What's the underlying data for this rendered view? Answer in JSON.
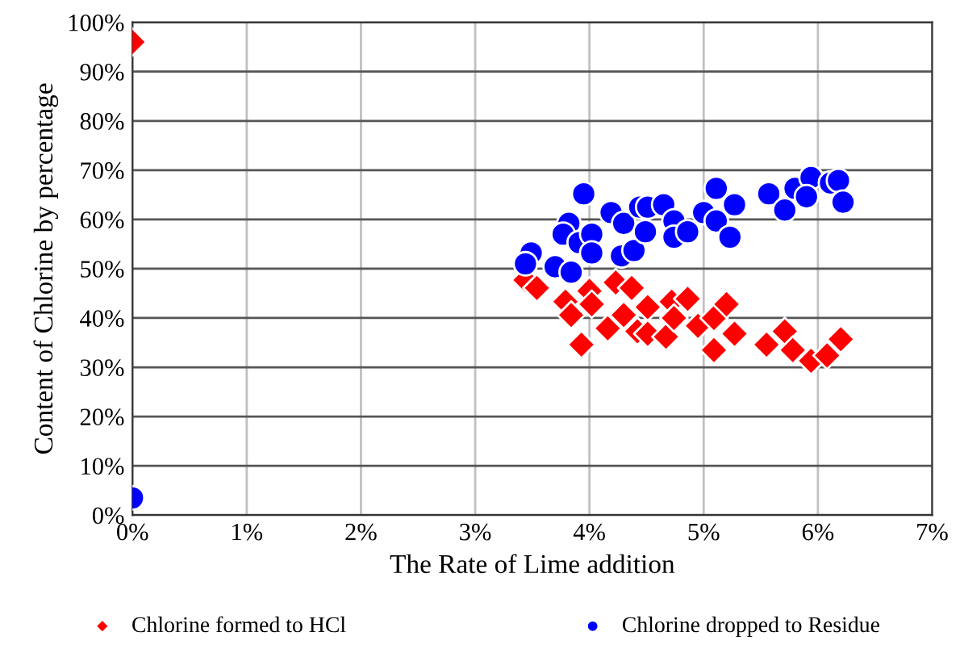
{
  "chart_data": {
    "type": "scatter",
    "xlabel": "The Rate of Lime addition",
    "ylabel": "Content of Chlorine by percentage",
    "xlim": [
      0,
      7
    ],
    "ylim": [
      0,
      100
    ],
    "xticks": [
      {
        "value": 0,
        "label": "0%"
      },
      {
        "value": 1,
        "label": "1%"
      },
      {
        "value": 2,
        "label": "2%"
      },
      {
        "value": 3,
        "label": "3%"
      },
      {
        "value": 4,
        "label": "4%"
      },
      {
        "value": 5,
        "label": "5%"
      },
      {
        "value": 6,
        "label": "6%"
      },
      {
        "value": 7,
        "label": "7%"
      }
    ],
    "yticks": [
      {
        "value": 0,
        "label": "0%"
      },
      {
        "value": 10,
        "label": "10%"
      },
      {
        "value": 20,
        "label": "20%"
      },
      {
        "value": 30,
        "label": "30%"
      },
      {
        "value": 40,
        "label": "40%"
      },
      {
        "value": 50,
        "label": "50%"
      },
      {
        "value": 60,
        "label": "60%"
      },
      {
        "value": 70,
        "label": "70%"
      },
      {
        "value": 80,
        "label": "80%"
      },
      {
        "value": 90,
        "label": "90%"
      },
      {
        "value": 100,
        "label": "100%"
      }
    ],
    "grid": true,
    "legend": "bottom",
    "series": [
      {
        "name": "Chlorine formed to HCl",
        "color": "#ff0000",
        "marker": "diamond",
        "x": [
          0,
          3.44,
          3.54,
          3.79,
          3.84,
          3.93,
          4.0,
          4.02,
          4.16,
          4.23,
          4.3,
          4.37,
          4.42,
          4.51,
          4.51,
          4.67,
          4.72,
          4.74,
          4.86,
          4.95,
          5.09,
          5.09,
          5.2,
          5.27,
          5.55,
          5.71,
          5.78,
          5.94,
          6.08,
          6.2
        ],
        "values": [
          96,
          47.7,
          46.1,
          43.3,
          40.6,
          34.6,
          45.5,
          42.8,
          37.9,
          47.2,
          40.6,
          46.1,
          37.3,
          42.2,
          36.8,
          36.2,
          43.3,
          40.0,
          43.9,
          38.4,
          40.0,
          33.5,
          42.8,
          36.8,
          34.6,
          37.3,
          33.5,
          31.3,
          32.4,
          35.7
        ]
      },
      {
        "name": "Chlorine dropped to Residue",
        "color": "#0000ff",
        "marker": "circle",
        "x": [
          0,
          3.49,
          3.44,
          3.7,
          3.84,
          3.95,
          3.82,
          3.77,
          3.91,
          4.02,
          4.02,
          4.19,
          4.3,
          4.28,
          4.39,
          4.49,
          4.44,
          4.51,
          4.65,
          4.74,
          4.74,
          4.86,
          5.0,
          5.11,
          5.11,
          5.23,
          5.27,
          5.57,
          5.71,
          5.8,
          5.94,
          5.9,
          6.11,
          6.18,
          6.22
        ],
        "values": [
          3.5,
          53.2,
          51.0,
          50.4,
          49.3,
          65.2,
          59.2,
          57.0,
          55.3,
          57.0,
          53.2,
          61.4,
          59.2,
          52.6,
          53.7,
          57.5,
          62.5,
          62.5,
          63.0,
          59.7,
          56.4,
          57.5,
          61.4,
          66.3,
          59.7,
          56.4,
          63.0,
          65.2,
          61.9,
          66.3,
          68.5,
          64.6,
          67.4,
          67.9,
          63.5
        ]
      }
    ]
  }
}
